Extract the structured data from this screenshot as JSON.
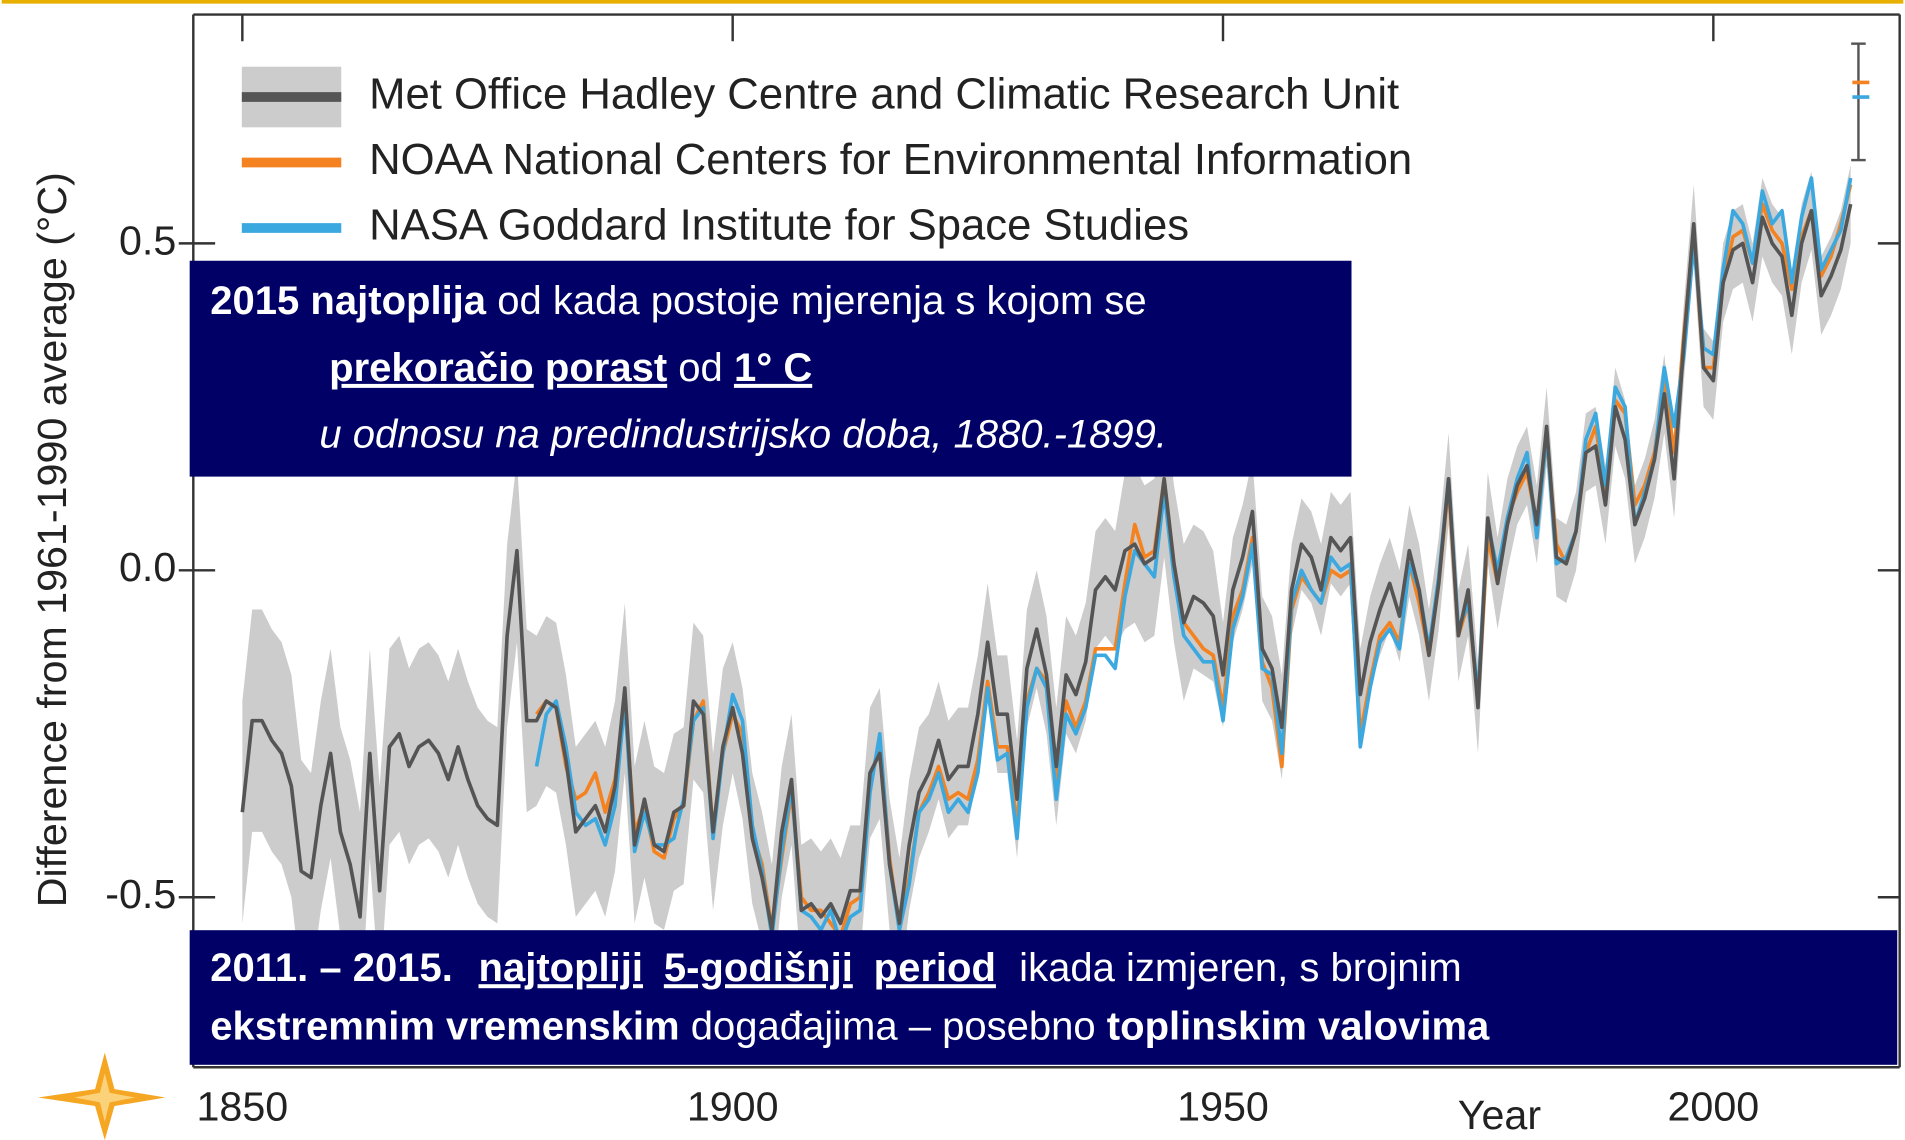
{
  "chart_data": {
    "type": "line",
    "ylabel": "Difference from 1961-1990 average (°C)",
    "xlabel": "Year",
    "xlim": [
      1845,
      2019
    ],
    "ylim": [
      -0.76,
      0.85
    ],
    "xticks": [
      1850,
      1900,
      1950,
      2000
    ],
    "yticks": [
      -0.5,
      {
        "value": 0,
        "label": "0.0"
      },
      0.5
    ],
    "band_color": "#cccccc",
    "x": [
      1850,
      1851,
      1852,
      1853,
      1854,
      1855,
      1856,
      1857,
      1858,
      1859,
      1860,
      1861,
      1862,
      1863,
      1864,
      1865,
      1866,
      1867,
      1868,
      1869,
      1870,
      1871,
      1872,
      1873,
      1874,
      1875,
      1876,
      1877,
      1878,
      1879,
      1880,
      1881,
      1882,
      1883,
      1884,
      1885,
      1886,
      1887,
      1888,
      1889,
      1890,
      1891,
      1892,
      1893,
      1894,
      1895,
      1896,
      1897,
      1898,
      1899,
      1900,
      1901,
      1902,
      1903,
      1904,
      1905,
      1906,
      1907,
      1908,
      1909,
      1910,
      1911,
      1912,
      1913,
      1914,
      1915,
      1916,
      1917,
      1918,
      1919,
      1920,
      1921,
      1922,
      1923,
      1924,
      1925,
      1926,
      1927,
      1928,
      1929,
      1930,
      1931,
      1932,
      1933,
      1934,
      1935,
      1936,
      1937,
      1938,
      1939,
      1940,
      1941,
      1942,
      1943,
      1944,
      1945,
      1946,
      1947,
      1948,
      1949,
      1950,
      1951,
      1952,
      1953,
      1954,
      1955,
      1956,
      1957,
      1958,
      1959,
      1960,
      1961,
      1962,
      1963,
      1964,
      1965,
      1966,
      1967,
      1968,
      1969,
      1970,
      1971,
      1972,
      1973,
      1974,
      1975,
      1976,
      1977,
      1978,
      1979,
      1980,
      1981,
      1982,
      1983,
      1984,
      1985,
      1986,
      1987,
      1988,
      1989,
      1990,
      1991,
      1992,
      1993,
      1994,
      1995,
      1996,
      1997,
      1998,
      1999,
      2000,
      2001,
      2002,
      2003,
      2004,
      2005,
      2006,
      2007,
      2008,
      2009,
      2010,
      2011,
      2012,
      2013,
      2014
    ],
    "series": [
      {
        "name": "Met Office Hadley Centre and Climatic Research Unit",
        "color": "#555555",
        "values": [
          -0.37,
          -0.23,
          -0.23,
          -0.26,
          -0.28,
          -0.33,
          -0.46,
          -0.47,
          -0.36,
          -0.28,
          -0.4,
          -0.45,
          -0.53,
          -0.28,
          -0.49,
          -0.27,
          -0.25,
          -0.3,
          -0.27,
          -0.26,
          -0.28,
          -0.32,
          -0.27,
          -0.32,
          -0.36,
          -0.38,
          -0.39,
          -0.1,
          0.03,
          -0.23,
          -0.23,
          -0.2,
          -0.21,
          -0.29,
          -0.4,
          -0.38,
          -0.36,
          -0.4,
          -0.33,
          -0.18,
          -0.42,
          -0.35,
          -0.42,
          -0.43,
          -0.37,
          -0.36,
          -0.2,
          -0.22,
          -0.4,
          -0.27,
          -0.21,
          -0.28,
          -0.41,
          -0.47,
          -0.55,
          -0.4,
          -0.32,
          -0.52,
          -0.51,
          -0.53,
          -0.51,
          -0.54,
          -0.49,
          -0.49,
          -0.31,
          -0.28,
          -0.45,
          -0.54,
          -0.42,
          -0.34,
          -0.31,
          -0.26,
          -0.32,
          -0.3,
          -0.3,
          -0.22,
          -0.11,
          -0.22,
          -0.22,
          -0.35,
          -0.15,
          -0.09,
          -0.16,
          -0.3,
          -0.16,
          -0.19,
          -0.14,
          -0.03,
          -0.01,
          -0.03,
          0.03,
          0.04,
          0.01,
          0.02,
          0.14,
          0.01,
          -0.08,
          -0.04,
          -0.05,
          -0.07,
          -0.16,
          -0.03,
          0.02,
          0.09,
          -0.12,
          -0.15,
          -0.24,
          -0.03,
          0.04,
          0.02,
          -0.03,
          0.05,
          0.03,
          0.05,
          -0.19,
          -0.11,
          -0.06,
          -0.02,
          -0.07,
          0.03,
          -0.03,
          -0.13,
          -0.02,
          0.14,
          -0.1,
          -0.03,
          -0.21,
          0.08,
          -0.02,
          0.07,
          0.13,
          0.16,
          0.07,
          0.22,
          0.02,
          0.01,
          0.06,
          0.18,
          0.19,
          0.1,
          0.25,
          0.2,
          0.07,
          0.11,
          0.17,
          0.27,
          0.14,
          0.35,
          0.53,
          0.31,
          0.29,
          0.44,
          0.49,
          0.5,
          0.44,
          0.54,
          0.5,
          0.48,
          0.39,
          0.5,
          0.55,
          0.42,
          0.45,
          0.49,
          0.56
        ],
        "errors": [
          0.17,
          0.17,
          0.17,
          0.17,
          0.17,
          0.17,
          0.17,
          0.16,
          0.16,
          0.16,
          0.16,
          0.16,
          0.16,
          0.16,
          0.16,
          0.15,
          0.15,
          0.15,
          0.15,
          0.15,
          0.15,
          0.15,
          0.15,
          0.15,
          0.15,
          0.15,
          0.15,
          0.14,
          0.14,
          0.14,
          0.13,
          0.13,
          0.13,
          0.13,
          0.13,
          0.13,
          0.13,
          0.13,
          0.13,
          0.13,
          0.12,
          0.12,
          0.12,
          0.12,
          0.12,
          0.12,
          0.12,
          0.12,
          0.12,
          0.12,
          0.1,
          0.1,
          0.1,
          0.1,
          0.1,
          0.1,
          0.1,
          0.1,
          0.1,
          0.1,
          0.1,
          0.1,
          0.1,
          0.1,
          0.1,
          0.1,
          0.1,
          0.1,
          0.1,
          0.1,
          0.09,
          0.09,
          0.09,
          0.09,
          0.09,
          0.09,
          0.09,
          0.09,
          0.09,
          0.09,
          0.09,
          0.09,
          0.09,
          0.09,
          0.09,
          0.09,
          0.09,
          0.09,
          0.09,
          0.09,
          0.12,
          0.12,
          0.12,
          0.12,
          0.12,
          0.12,
          0.12,
          0.11,
          0.11,
          0.1,
          0.08,
          0.08,
          0.08,
          0.08,
          0.08,
          0.08,
          0.08,
          0.07,
          0.07,
          0.07,
          0.07,
          0.07,
          0.07,
          0.07,
          0.07,
          0.07,
          0.07,
          0.07,
          0.07,
          0.07,
          0.07,
          0.07,
          0.07,
          0.07,
          0.07,
          0.07,
          0.07,
          0.07,
          0.07,
          0.07,
          0.06,
          0.06,
          0.06,
          0.06,
          0.06,
          0.06,
          0.06,
          0.06,
          0.06,
          0.06,
          0.06,
          0.06,
          0.06,
          0.06,
          0.06,
          0.06,
          0.06,
          0.06,
          0.06,
          0.06,
          0.06,
          0.06,
          0.06,
          0.06,
          0.06,
          0.06,
          0.06,
          0.06,
          0.06,
          0.06,
          0.06,
          0.06,
          0.06,
          0.06,
          0.06
        ]
      },
      {
        "name": "NOAA National Centers for Environmental Information",
        "color": "#f58220",
        "values": [
          null,
          null,
          null,
          null,
          null,
          null,
          null,
          null,
          null,
          null,
          null,
          null,
          null,
          null,
          null,
          null,
          null,
          null,
          null,
          null,
          null,
          null,
          null,
          null,
          null,
          null,
          null,
          null,
          null,
          null,
          -0.22,
          -0.2,
          -0.21,
          -0.3,
          -0.35,
          -0.34,
          -0.31,
          -0.37,
          -0.32,
          -0.2,
          -0.4,
          -0.36,
          -0.43,
          -0.44,
          -0.38,
          -0.36,
          -0.23,
          -0.2,
          -0.4,
          -0.28,
          -0.22,
          -0.25,
          -0.4,
          -0.45,
          -0.55,
          -0.44,
          -0.34,
          -0.5,
          -0.52,
          -0.52,
          -0.54,
          -0.56,
          -0.51,
          -0.5,
          -0.33,
          -0.26,
          -0.44,
          -0.55,
          -0.47,
          -0.37,
          -0.34,
          -0.3,
          -0.35,
          -0.34,
          -0.35,
          -0.29,
          -0.17,
          -0.27,
          -0.27,
          -0.39,
          -0.2,
          -0.15,
          -0.17,
          -0.33,
          -0.2,
          -0.24,
          -0.2,
          -0.12,
          -0.12,
          -0.12,
          -0.02,
          0.07,
          0.02,
          0.03,
          0.14,
          0.01,
          -0.08,
          -0.1,
          -0.12,
          -0.13,
          -0.21,
          -0.07,
          -0.03,
          0.05,
          -0.14,
          -0.18,
          -0.3,
          -0.06,
          -0.01,
          -0.03,
          -0.05,
          0.0,
          -0.01,
          0.0,
          -0.25,
          -0.17,
          -0.1,
          -0.08,
          -0.11,
          0.01,
          -0.05,
          -0.13,
          -0.02,
          0.13,
          -0.1,
          -0.05,
          -0.2,
          0.05,
          -0.02,
          0.08,
          0.12,
          0.15,
          0.07,
          0.2,
          0.04,
          0.01,
          0.06,
          0.18,
          0.22,
          0.12,
          0.26,
          0.24,
          0.1,
          0.13,
          0.18,
          0.29,
          0.18,
          0.36,
          0.52,
          0.31,
          0.31,
          0.44,
          0.51,
          0.52,
          0.47,
          0.56,
          0.52,
          0.5,
          0.43,
          0.51,
          0.55,
          0.45,
          0.48,
          0.53,
          0.59
        ]
      },
      {
        "name": "NASA Goddard Institute for Space Studies",
        "color": "#3ba8e0",
        "values": [
          null,
          null,
          null,
          null,
          null,
          null,
          null,
          null,
          null,
          null,
          null,
          null,
          null,
          null,
          null,
          null,
          null,
          null,
          null,
          null,
          null,
          null,
          null,
          null,
          null,
          null,
          null,
          null,
          null,
          null,
          -0.3,
          -0.22,
          -0.2,
          -0.27,
          -0.37,
          -0.39,
          -0.38,
          -0.42,
          -0.36,
          -0.2,
          -0.43,
          -0.37,
          -0.42,
          -0.42,
          -0.41,
          -0.35,
          -0.23,
          -0.21,
          -0.41,
          -0.28,
          -0.19,
          -0.23,
          -0.39,
          -0.46,
          -0.56,
          -0.43,
          -0.33,
          -0.52,
          -0.53,
          -0.55,
          -0.52,
          -0.57,
          -0.53,
          -0.52,
          -0.34,
          -0.25,
          -0.45,
          -0.55,
          -0.48,
          -0.37,
          -0.35,
          -0.31,
          -0.37,
          -0.35,
          -0.37,
          -0.31,
          -0.18,
          -0.29,
          -0.28,
          -0.41,
          -0.21,
          -0.15,
          -0.18,
          -0.35,
          -0.22,
          -0.25,
          -0.21,
          -0.13,
          -0.13,
          -0.15,
          -0.04,
          0.03,
          0.01,
          -0.01,
          0.12,
          -0.01,
          -0.1,
          -0.12,
          -0.14,
          -0.14,
          -0.23,
          -0.09,
          -0.04,
          0.04,
          -0.15,
          -0.16,
          -0.28,
          -0.05,
          0.0,
          -0.03,
          -0.05,
          0.02,
          0.0,
          0.01,
          -0.27,
          -0.18,
          -0.11,
          -0.09,
          -0.12,
          0.01,
          -0.03,
          -0.12,
          -0.01,
          0.14,
          -0.09,
          -0.05,
          -0.19,
          0.07,
          0.0,
          0.08,
          0.14,
          0.18,
          0.05,
          0.21,
          0.01,
          0.02,
          0.06,
          0.2,
          0.24,
          0.13,
          0.28,
          0.25,
          0.07,
          0.12,
          0.17,
          0.31,
          0.22,
          0.33,
          0.5,
          0.34,
          0.33,
          0.46,
          0.55,
          0.53,
          0.47,
          0.58,
          0.53,
          0.55,
          0.44,
          0.54,
          0.6,
          0.46,
          0.49,
          0.52,
          0.6
        ]
      }
    ],
    "annotations": [
      {
        "lines": [
          [
            "2015 najtoplija",
            "od kada postoje mjerenja s kojom se"
          ],
          [
            "prekoračio",
            "porast",
            "od",
            "1° C"
          ],
          [
            "u odnosu na predindustrijsko doba, 1880.-1899."
          ]
        ]
      },
      {
        "lines": [
          [
            "2011. – 2015.",
            "najtopliji",
            "5-godišnji",
            "period",
            "ikada izmjeren, s brojnim"
          ],
          [
            "ekstremnim vremenskim",
            "događajima – posebno",
            "toplinskim valovima"
          ]
        ]
      }
    ]
  }
}
